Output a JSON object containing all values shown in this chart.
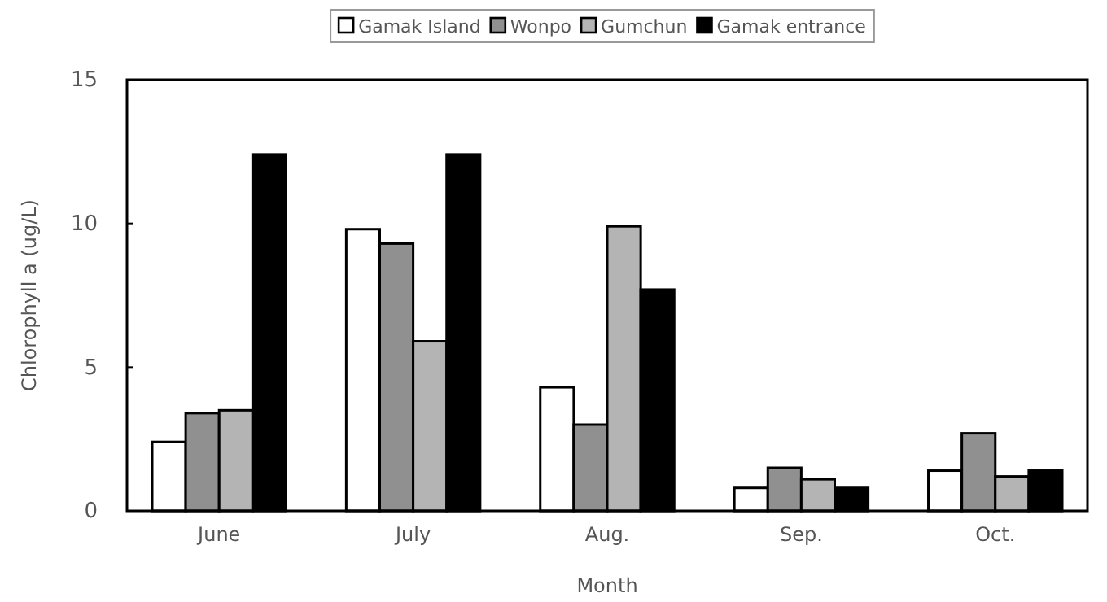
{
  "chart_data": {
    "type": "bar",
    "xlabel": "Month",
    "ylabel": "Chlorophyll a (ug/L)",
    "categories": [
      "June",
      "July",
      "Aug.",
      "Sep.",
      "Oct."
    ],
    "series": [
      {
        "name": "Gamak Island",
        "color": "#ffffff",
        "values": [
          2.4,
          9.8,
          4.3,
          0.8,
          1.4
        ]
      },
      {
        "name": "Wonpo",
        "color": "#909090",
        "values": [
          3.4,
          9.3,
          3.0,
          1.5,
          2.7
        ]
      },
      {
        "name": "Gumchun",
        "color": "#b4b4b4",
        "values": [
          3.5,
          5.9,
          9.9,
          1.1,
          1.2
        ]
      },
      {
        "name": "Gamak entrance",
        "color": "#000000",
        "values": [
          12.4,
          12.4,
          7.7,
          0.8,
          1.4
        ]
      }
    ],
    "ylim": [
      0,
      15
    ],
    "yticks": [
      0,
      5,
      10,
      15
    ],
    "legend": "top",
    "grid": false
  }
}
